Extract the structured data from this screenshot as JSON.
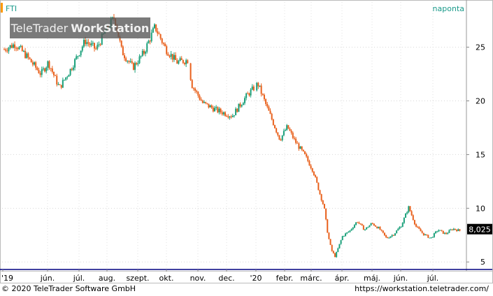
{
  "header": {
    "symbol": "FTI",
    "interval": "naponta"
  },
  "watermark": {
    "brand": "TeleTrader",
    "product": "WorkStation"
  },
  "footer": {
    "copyright": "© 2020 TeleTrader Software GmbH",
    "url": "https://workstation.teletrader.com/"
  },
  "colors": {
    "up": "#1aa07a",
    "down": "#e8601c",
    "accent": "#ff9900",
    "header_text": "#1a9a8a",
    "frame": "#bbbbbb",
    "last_price_bg": "#000000"
  },
  "chart_data": {
    "type": "ohlc",
    "ylim": [
      4.3,
      29.2
    ],
    "y_ticks": [
      5,
      10,
      15,
      20,
      25
    ],
    "x_tick_labels": [
      "'19",
      "jún.",
      "júl.",
      "aug.",
      "szept.",
      "okt.",
      "nov.",
      "dec.",
      "'20",
      "febr.",
      "márc.",
      "ápr.",
      "máj.",
      "jún.",
      "júl."
    ],
    "last_price": "8,025",
    "last_value": 8.025,
    "price_path": [
      [
        0,
        24.8
      ],
      [
        3,
        25.3
      ],
      [
        6,
        24.2
      ],
      [
        10,
        22.5
      ],
      [
        12,
        23.6
      ],
      [
        15,
        21.2
      ],
      [
        18,
        22.9
      ],
      [
        22,
        25.6
      ],
      [
        25,
        24.8
      ],
      [
        28,
        26.8
      ],
      [
        30,
        27.8
      ],
      [
        32,
        24.6
      ],
      [
        35,
        23.1
      ],
      [
        38,
        24.5
      ],
      [
        41,
        26.9
      ],
      [
        44,
        24.8
      ],
      [
        47,
        23.6
      ],
      [
        50,
        23.8
      ],
      [
        51,
        21.5
      ],
      [
        54,
        19.8
      ],
      [
        58,
        19.1
      ],
      [
        62,
        18.6
      ],
      [
        66,
        20.5
      ],
      [
        69,
        21.6
      ],
      [
        71,
        19.8
      ],
      [
        73,
        18.1
      ],
      [
        75,
        16.4
      ],
      [
        77,
        17.6
      ],
      [
        79,
        16.3
      ],
      [
        82,
        14.8
      ],
      [
        84,
        13.5
      ],
      [
        86,
        11.2
      ],
      [
        87,
        10.1
      ],
      [
        88,
        7.6
      ],
      [
        89,
        6.1
      ],
      [
        90,
        5.5
      ],
      [
        92,
        7.4
      ],
      [
        94,
        7.9
      ],
      [
        96,
        8.8
      ],
      [
        98,
        8.0
      ],
      [
        100,
        8.6
      ],
      [
        102,
        8.1
      ],
      [
        104,
        7.2
      ],
      [
        106,
        7.6
      ],
      [
        108,
        8.4
      ],
      [
        110,
        10.1
      ],
      [
        112,
        8.3
      ],
      [
        114,
        7.6
      ],
      [
        116,
        7.2
      ],
      [
        118,
        8.0
      ],
      [
        120,
        7.6
      ],
      [
        122,
        8.1
      ],
      [
        124,
        7.9
      ]
    ]
  }
}
